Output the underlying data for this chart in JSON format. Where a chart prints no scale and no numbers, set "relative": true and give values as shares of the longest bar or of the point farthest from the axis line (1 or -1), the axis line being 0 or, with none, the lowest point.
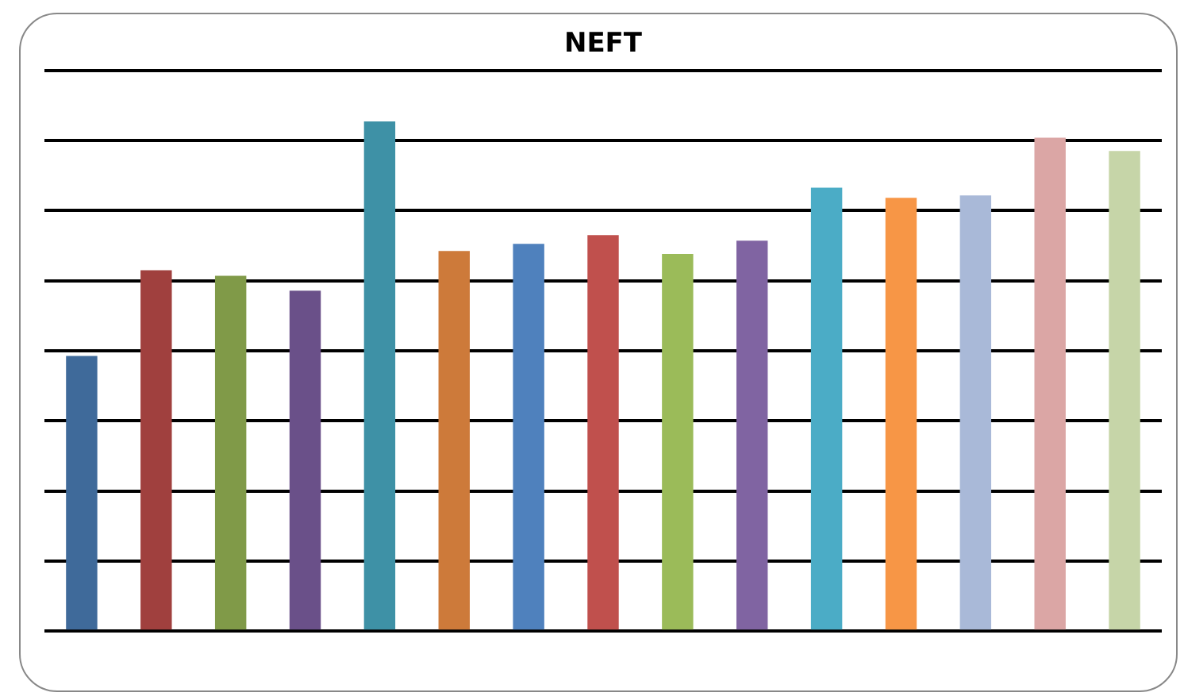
{
  "chart_data": {
    "type": "bar",
    "title": "NEFT",
    "relative": true,
    "grid": "y",
    "legend": false,
    "categories": [
      null,
      null,
      null,
      null,
      null,
      null,
      null,
      null,
      null,
      null,
      null,
      null,
      null,
      null,
      null
    ],
    "values": [
      0.54,
      0.708,
      0.697,
      0.668,
      1,
      0.746,
      0.76,
      0.777,
      0.74,
      0.766,
      0.87,
      0.85,
      0.855,
      0.968,
      0.942
    ],
    "colors": [
      "#3f6a9a",
      "#a0403e",
      "#809a48",
      "#6a5089",
      "#3e91a6",
      "#cd7a3a",
      "#4f81bd",
      "#c0504d",
      "#9bbb59",
      "#8064a2",
      "#4bacc6",
      "#f79646",
      "#a9b9d8",
      "#dba6a5",
      "#c6d5a8"
    ]
  }
}
